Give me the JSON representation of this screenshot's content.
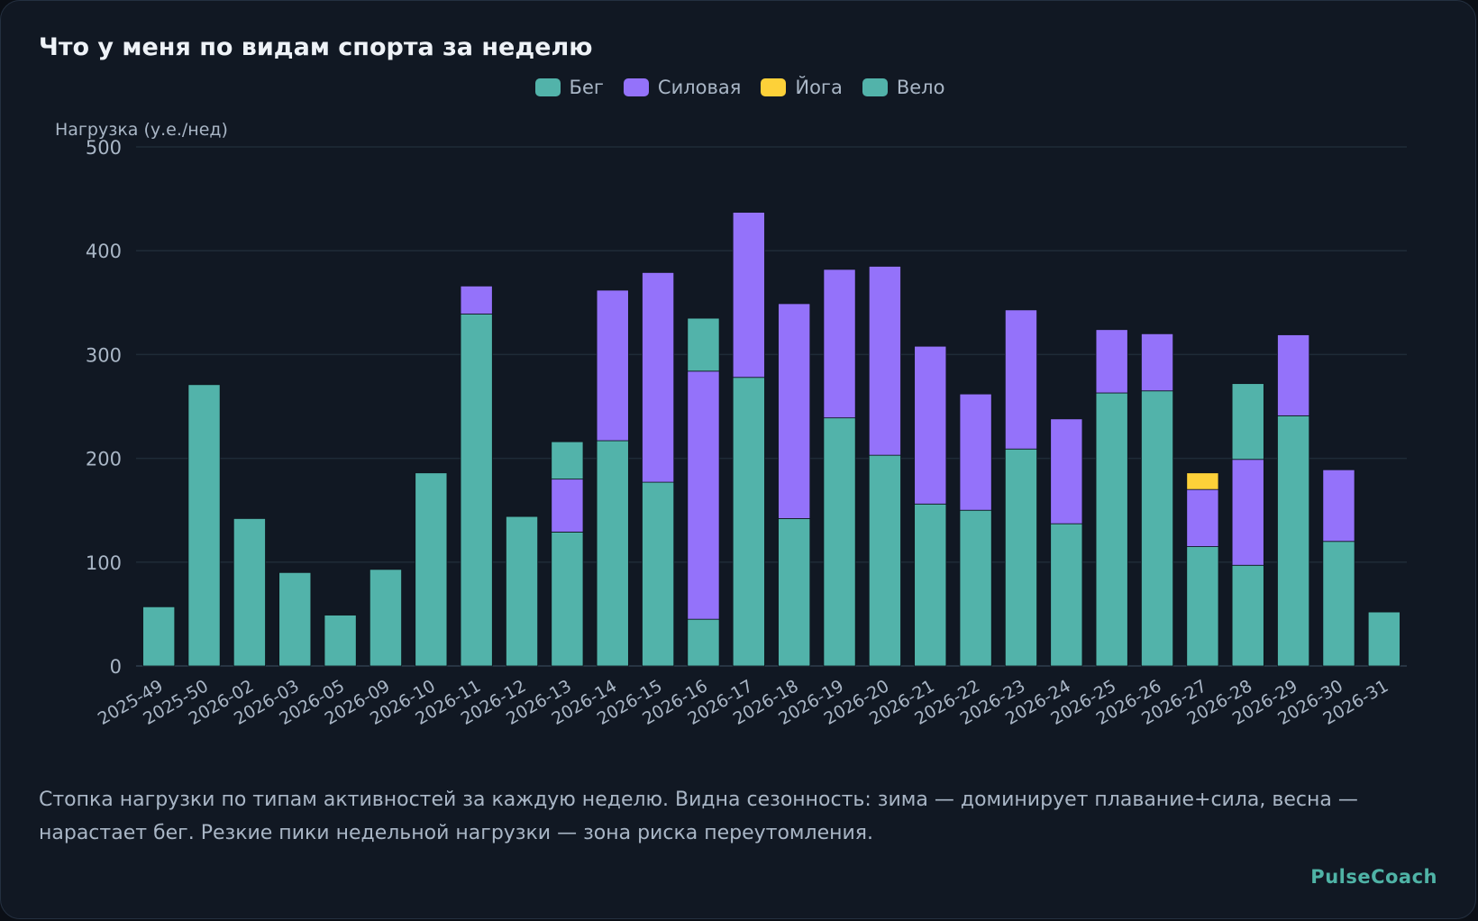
{
  "title": "Что у меня по видам спорта за неделю",
  "legend": [
    {
      "name": "Бег",
      "color": "#52b3aa"
    },
    {
      "name": "Силовая",
      "color": "#9472fa"
    },
    {
      "name": "Йога",
      "color": "#fdd139"
    },
    {
      "name": "Вело",
      "color": "#52b3aa"
    }
  ],
  "caption": "Стопка нагрузки по типам активностей за каждую неделю. Видна сезонность: зима — доминирует плавание+сила, весна — нарастает бег. Резкие пики недельной нагрузки — зона риска переутомления.",
  "brand": "PulseCoach",
  "chart_data": {
    "type": "bar",
    "stacked": true,
    "ylabel": "Нагрузка (у.е./нед)",
    "xlabel": "",
    "ylim": [
      0,
      500
    ],
    "yticks": [
      0,
      100,
      200,
      300,
      400,
      500
    ],
    "grid": true,
    "legend_position": "top",
    "categories": [
      "2025-49",
      "2025-50",
      "2026-02",
      "2026-03",
      "2026-05",
      "2026-09",
      "2026-10",
      "2026-11",
      "2026-12",
      "2026-13",
      "2026-14",
      "2026-15",
      "2026-16",
      "2026-17",
      "2026-18",
      "2026-19",
      "2026-20",
      "2026-21",
      "2026-22",
      "2026-23",
      "2026-24",
      "2026-25",
      "2026-26",
      "2026-27",
      "2026-28",
      "2026-29",
      "2026-30",
      "2026-31"
    ],
    "series": [
      {
        "name": "Бег",
        "color": "#52b3aa",
        "values": [
          57,
          271,
          142,
          90,
          49,
          93,
          186,
          339,
          144,
          129,
          217,
          177,
          45,
          278,
          142,
          239,
          203,
          156,
          150,
          209,
          137,
          263,
          265,
          115,
          97,
          241,
          120,
          52
        ]
      },
      {
        "name": "Силовая",
        "color": "#9472fa",
        "values": [
          0,
          0,
          0,
          0,
          0,
          0,
          0,
          27,
          0,
          51,
          145,
          202,
          239,
          159,
          207,
          143,
          182,
          152,
          112,
          134,
          101,
          61,
          55,
          55,
          102,
          78,
          69,
          0
        ]
      },
      {
        "name": "Йога",
        "color": "#fdd139",
        "values": [
          0,
          0,
          0,
          0,
          0,
          0,
          0,
          0,
          0,
          0,
          0,
          0,
          0,
          0,
          0,
          0,
          0,
          0,
          0,
          0,
          0,
          0,
          0,
          16,
          0,
          0,
          0,
          0
        ]
      },
      {
        "name": "Вело",
        "color": "#52b3aa",
        "values": [
          0,
          0,
          0,
          0,
          0,
          0,
          0,
          0,
          0,
          36,
          0,
          0,
          51,
          0,
          0,
          0,
          0,
          0,
          0,
          0,
          0,
          0,
          0,
          0,
          73,
          0,
          0,
          0
        ]
      }
    ]
  }
}
